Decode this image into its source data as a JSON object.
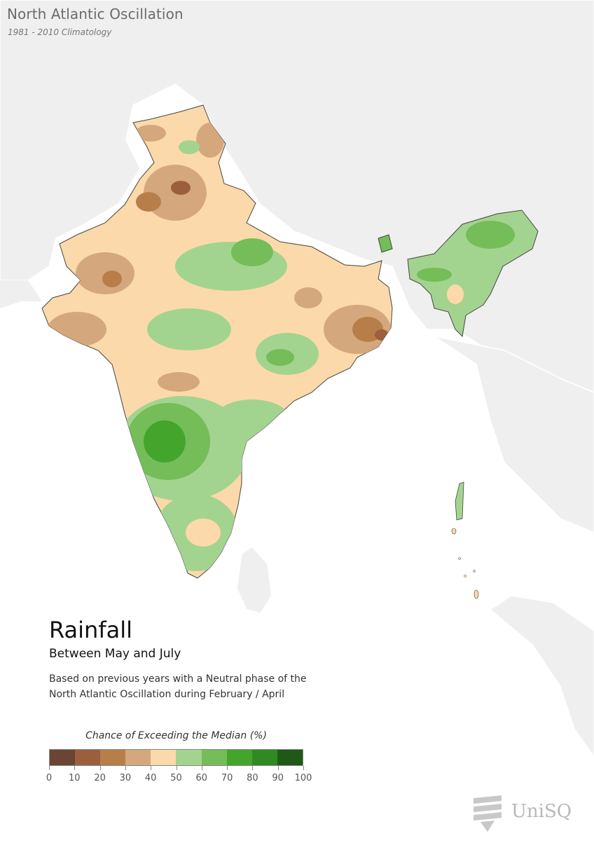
{
  "header": {
    "title": "North Atlantic Oscillation",
    "subtitle": "1981 - 2010 Climatology"
  },
  "variable": {
    "title": "Rainfall",
    "period": "Between May and July",
    "description_line1": "Based on previous years with a Neutral phase of the",
    "description_line2": "North Atlantic Oscillation during February / April"
  },
  "legend": {
    "title": "Chance of Exceeding the Median (%)",
    "colors": [
      "#6b4433",
      "#9b5f3e",
      "#b87e4a",
      "#d4a87c",
      "#fcd9aa",
      "#a3d48f",
      "#74bd58",
      "#44a52c",
      "#2f8a22",
      "#1e5a16"
    ],
    "ticks": [
      "0",
      "10",
      "20",
      "30",
      "40",
      "50",
      "60",
      "70",
      "80",
      "90",
      "100"
    ]
  },
  "logo": {
    "text": "UniSQ"
  },
  "map_colors": {
    "background_land": "#efefef",
    "border": "#ffffff",
    "ocean": "#ffffff",
    "outline": "#555555"
  }
}
